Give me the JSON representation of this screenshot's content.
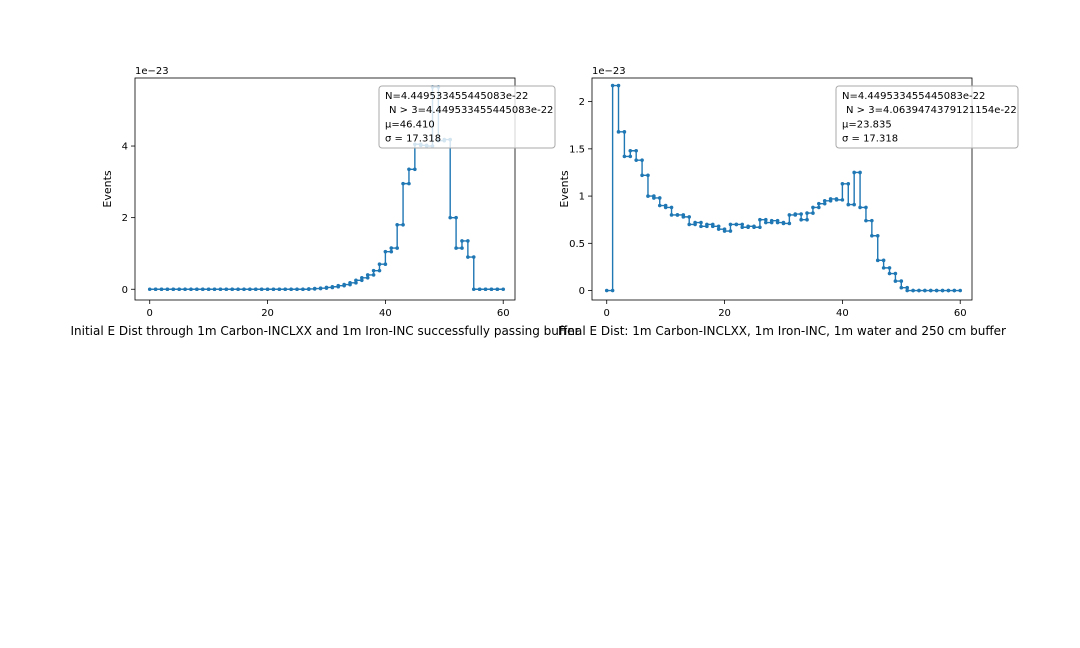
{
  "chart_data": [
    {
      "type": "line",
      "title": "Initial E Dist through 1m Carbon-INCLXX and 1m Iron-INC successfully passing buffer",
      "xlabel": "",
      "ylabel": "Events",
      "scale_label": "1e−23",
      "xlim": [
        -2.5,
        62
      ],
      "ylim": [
        -0.3,
        5.9
      ],
      "xticks": [
        0,
        20,
        40,
        60
      ],
      "yticks": [
        0,
        2,
        4
      ],
      "color": "#1f77b4",
      "stats_box": {
        "line1": "N=4.449533455445083e-22",
        "line2": "N > 3=4.449533455445083e-22",
        "line3": "μ=46.410",
        "line4": "σ = 17.318"
      },
      "series": [
        {
          "x": [
            0.5,
            1.5,
            2.5,
            3.5,
            4.5,
            5.5,
            6.5,
            7.5,
            8.5,
            9.5,
            10.5,
            11.5,
            12.5,
            13.5,
            14.5,
            15.5,
            16.5,
            17.5,
            18.5,
            19.5,
            20.5,
            21.5,
            22.5,
            23.5,
            24.5,
            25.5,
            26.5,
            27.5,
            28.5,
            29.5,
            30.5,
            31.5,
            32.5,
            33.5,
            34.5,
            35.5,
            36.5,
            37.5,
            38.5,
            39.5,
            40.5,
            41.5,
            42.5,
            43.5,
            44.5,
            45.5,
            46.5,
            47.5,
            48.5,
            49.5,
            50.5,
            51.5,
            52.5,
            53.5,
            54.5,
            55.5,
            56.5,
            57.5,
            58.5,
            59.5
          ],
          "y": [
            0,
            0,
            0,
            0,
            0,
            0,
            0,
            0,
            0,
            0,
            0,
            0,
            0,
            0,
            0,
            0,
            0,
            0,
            0,
            0,
            0,
            0,
            0,
            0,
            0,
            0,
            0,
            0.01,
            0.02,
            0.03,
            0.05,
            0.07,
            0.1,
            0.13,
            0.18,
            0.25,
            0.32,
            0.4,
            0.52,
            0.7,
            1.05,
            1.15,
            1.8,
            2.95,
            3.35,
            4.05,
            4.02,
            4.0,
            5.65,
            4.15,
            4.18,
            2.0,
            1.15,
            1.35,
            0.9,
            0,
            0,
            0,
            0,
            0
          ]
        }
      ]
    },
    {
      "type": "line",
      "title": "Final E Dist: 1m Carbon-INCLXX, 1m Iron-INC, 1m water and 250 cm buffer",
      "xlabel": "",
      "ylabel": "Events",
      "scale_label": "1e−23",
      "xlim": [
        -2.5,
        62
      ],
      "ylim": [
        -0.1,
        2.25
      ],
      "xticks": [
        0,
        20,
        40,
        60
      ],
      "yticks": [
        0.0,
        0.5,
        1.0,
        1.5,
        2.0
      ],
      "color": "#1f77b4",
      "stats_box": {
        "line1": "N=4.449533455445083e-22",
        "line2": "N > 3=4.0639474379121154e-22",
        "line3": "μ=23.835",
        "line4": "σ = 17.318"
      },
      "series": [
        {
          "x": [
            0.5,
            1.5,
            2.5,
            3.5,
            4.5,
            5.5,
            6.5,
            7.5,
            8.5,
            9.5,
            10.5,
            11.5,
            12.5,
            13.5,
            14.5,
            15.5,
            16.5,
            17.5,
            18.5,
            19.5,
            20.5,
            21.5,
            22.5,
            23.5,
            24.5,
            25.5,
            26.5,
            27.5,
            28.5,
            29.5,
            30.5,
            31.5,
            32.5,
            33.5,
            34.5,
            35.5,
            36.5,
            37.5,
            38.5,
            39.5,
            40.5,
            41.5,
            42.5,
            43.5,
            44.5,
            45.5,
            46.5,
            47.5,
            48.5,
            49.5,
            50.5,
            51.5,
            52.5,
            53.5,
            54.5,
            55.5,
            56.5,
            57.5,
            58.5,
            59.5
          ],
          "y": [
            0,
            2.17,
            1.68,
            1.42,
            1.48,
            1.38,
            1.22,
            1.0,
            0.98,
            0.9,
            0.88,
            0.8,
            0.8,
            0.78,
            0.7,
            0.72,
            0.68,
            0.7,
            0.68,
            0.65,
            0.63,
            0.7,
            0.7,
            0.67,
            0.68,
            0.67,
            0.75,
            0.72,
            0.74,
            0.72,
            0.71,
            0.8,
            0.81,
            0.75,
            0.82,
            0.88,
            0.92,
            0.95,
            0.97,
            0.96,
            1.13,
            0.91,
            1.25,
            0.88,
            0.74,
            0.58,
            0.32,
            0.24,
            0.18,
            0.1,
            0.03,
            0,
            0,
            0,
            0,
            0,
            0,
            0,
            0,
            0
          ]
        }
      ]
    }
  ]
}
